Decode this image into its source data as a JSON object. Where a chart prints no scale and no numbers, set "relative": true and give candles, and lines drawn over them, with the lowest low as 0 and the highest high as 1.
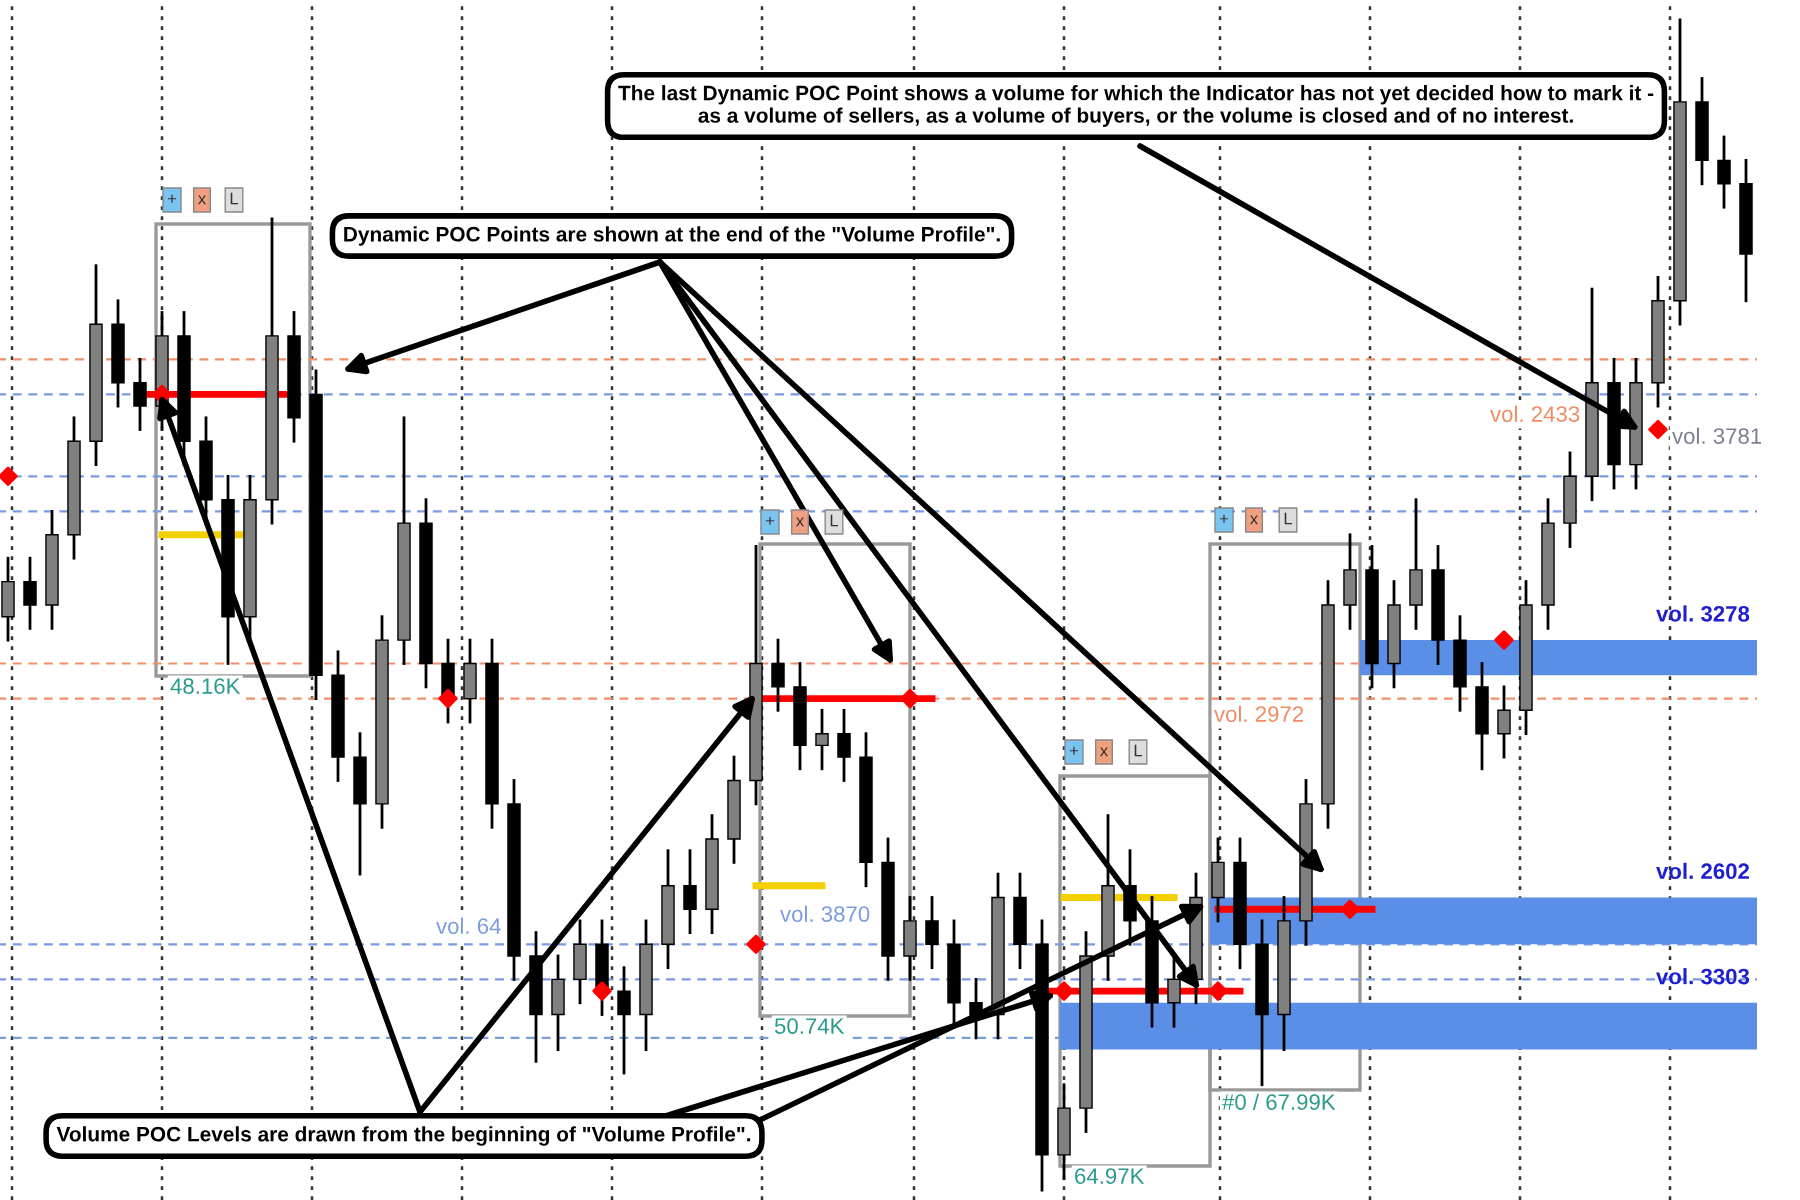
{
  "chart_data": {
    "type": "candlestick",
    "relative": true,
    "grid": "x",
    "categories": [
      null,
      null,
      null,
      null,
      null,
      null,
      null,
      null,
      null,
      null,
      null,
      null,
      null,
      null,
      null,
      null,
      null,
      null,
      null,
      null,
      null,
      null,
      null,
      null,
      null,
      null,
      null,
      null,
      null,
      null,
      null,
      null,
      null,
      null,
      null,
      null,
      null,
      null,
      null,
      null,
      null,
      null,
      null,
      null,
      null,
      null,
      null,
      null,
      null,
      null,
      null,
      null,
      null,
      null,
      null,
      null,
      null,
      null,
      null,
      null,
      null,
      null,
      null,
      null,
      null,
      null,
      null,
      null,
      null,
      null,
      null,
      null,
      null,
      null,
      null,
      null,
      null,
      null,
      null,
      null
    ],
    "ohlc": [
      [
        0.49,
        0.54,
        0.47,
        0.52
      ],
      [
        0.52,
        0.54,
        0.48,
        0.5
      ],
      [
        0.5,
        0.58,
        0.48,
        0.56
      ],
      [
        0.56,
        0.66,
        0.54,
        0.64
      ],
      [
        0.64,
        0.79,
        0.62,
        0.74
      ],
      [
        0.74,
        0.76,
        0.67,
        0.69
      ],
      [
        0.69,
        0.71,
        0.65,
        0.67
      ],
      [
        0.67,
        0.75,
        0.65,
        0.73
      ],
      [
        0.73,
        0.75,
        0.62,
        0.64
      ],
      [
        0.64,
        0.66,
        0.57,
        0.59
      ],
      [
        0.59,
        0.61,
        0.45,
        0.49
      ],
      [
        0.49,
        0.61,
        0.47,
        0.59
      ],
      [
        0.59,
        0.83,
        0.57,
        0.73
      ],
      [
        0.73,
        0.75,
        0.64,
        0.66
      ],
      [
        0.68,
        0.7,
        0.42,
        0.44
      ],
      [
        0.44,
        0.46,
        0.35,
        0.37
      ],
      [
        0.37,
        0.39,
        0.27,
        0.33
      ],
      [
        0.33,
        0.49,
        0.31,
        0.47
      ],
      [
        0.47,
        0.66,
        0.45,
        0.57
      ],
      [
        0.57,
        0.59,
        0.43,
        0.45
      ],
      [
        0.45,
        0.47,
        0.4,
        0.42
      ],
      [
        0.42,
        0.47,
        0.4,
        0.45
      ],
      [
        0.45,
        0.47,
        0.31,
        0.33
      ],
      [
        0.33,
        0.35,
        0.18,
        0.2
      ],
      [
        0.2,
        0.22,
        0.11,
        0.15
      ],
      [
        0.15,
        0.2,
        0.12,
        0.18
      ],
      [
        0.18,
        0.23,
        0.16,
        0.21
      ],
      [
        0.21,
        0.23,
        0.15,
        0.17
      ],
      [
        0.17,
        0.19,
        0.1,
        0.15
      ],
      [
        0.15,
        0.23,
        0.12,
        0.21
      ],
      [
        0.21,
        0.29,
        0.19,
        0.26
      ],
      [
        0.26,
        0.29,
        0.22,
        0.24
      ],
      [
        0.24,
        0.32,
        0.22,
        0.3
      ],
      [
        0.3,
        0.37,
        0.28,
        0.35
      ],
      [
        0.35,
        0.55,
        0.33,
        0.45
      ],
      [
        0.45,
        0.47,
        0.41,
        0.43
      ],
      [
        0.43,
        0.45,
        0.36,
        0.38
      ],
      [
        0.38,
        0.41,
        0.36,
        0.39
      ],
      [
        0.39,
        0.41,
        0.35,
        0.37
      ],
      [
        0.37,
        0.39,
        0.26,
        0.28
      ],
      [
        0.28,
        0.3,
        0.18,
        0.2
      ],
      [
        0.2,
        0.25,
        0.18,
        0.23
      ],
      [
        0.23,
        0.25,
        0.19,
        0.21
      ],
      [
        0.21,
        0.23,
        0.14,
        0.16
      ],
      [
        0.16,
        0.18,
        0.13,
        0.15
      ],
      [
        0.15,
        0.27,
        0.13,
        0.25
      ],
      [
        0.25,
        0.27,
        0.19,
        0.21
      ],
      [
        0.21,
        0.23,
        0,
        0.03
      ],
      [
        0.03,
        0.09,
        0.01,
        0.07
      ],
      [
        0.07,
        0.22,
        0.05,
        0.2
      ],
      [
        0.2,
        0.32,
        0.18,
        0.26
      ],
      [
        0.26,
        0.29,
        0.21,
        0.23
      ],
      [
        0.23,
        0.25,
        0.14,
        0.16
      ],
      [
        0.16,
        0.2,
        0.14,
        0.18
      ],
      [
        0.18,
        0.27,
        0.16,
        0.25
      ],
      [
        0.25,
        0.3,
        0.23,
        0.28
      ],
      [
        0.28,
        0.3,
        0.19,
        0.21
      ],
      [
        0.21,
        0.23,
        0.09,
        0.15
      ],
      [
        0.15,
        0.25,
        0.12,
        0.23
      ],
      [
        0.23,
        0.35,
        0.21,
        0.33
      ],
      [
        0.33,
        0.52,
        0.31,
        0.5
      ],
      [
        0.5,
        0.56,
        0.48,
        0.53
      ],
      [
        0.53,
        0.55,
        0.43,
        0.45
      ],
      [
        0.45,
        0.52,
        0.43,
        0.5
      ],
      [
        0.5,
        0.59,
        0.48,
        0.53
      ],
      [
        0.53,
        0.55,
        0.45,
        0.47
      ],
      [
        0.47,
        0.49,
        0.41,
        0.43
      ],
      [
        0.43,
        0.45,
        0.36,
        0.39
      ],
      [
        0.39,
        0.43,
        0.37,
        0.41
      ],
      [
        0.41,
        0.52,
        0.39,
        0.5
      ],
      [
        0.5,
        0.59,
        0.48,
        0.57
      ],
      [
        0.57,
        0.63,
        0.55,
        0.61
      ],
      [
        0.61,
        0.77,
        0.59,
        0.69
      ],
      [
        0.69,
        0.71,
        0.6,
        0.62
      ],
      [
        0.62,
        0.71,
        0.6,
        0.69
      ],
      [
        0.69,
        0.78,
        0.67,
        0.76
      ],
      [
        0.76,
        1.0,
        0.74,
        0.93
      ],
      [
        0.93,
        0.95,
        0.86,
        0.88
      ],
      [
        0.88,
        0.9,
        0.84,
        0.86
      ],
      [
        0.86,
        0.88,
        0.76,
        0.8
      ]
    ],
    "colors": [
      "#808080",
      "#000000",
      "#808080",
      "#808080",
      "#808080",
      "#000000",
      "#000000",
      "#808080",
      "#000000",
      "#000000",
      "#000000",
      "#808080",
      "#808080",
      "#000000",
      "#000000",
      "#000000",
      "#000000",
      "#808080",
      "#808080",
      "#000000",
      "#000000",
      "#808080",
      "#000000",
      "#000000",
      "#000000",
      "#808080",
      "#808080",
      "#000000",
      "#000000",
      "#808080",
      "#808080",
      "#000000",
      "#808080",
      "#808080",
      "#808080",
      "#000000",
      "#000000",
      "#808080",
      "#000000",
      "#000000",
      "#000000",
      "#808080",
      "#000000",
      "#000000",
      "#000000",
      "#808080",
      "#000000",
      "#000000",
      "#808080",
      "#808080",
      "#808080",
      "#000000",
      "#000000",
      "#808080",
      "#808080",
      "#808080",
      "#000000",
      "#000000",
      "#808080",
      "#808080",
      "#808080",
      "#808080",
      "#000000",
      "#808080",
      "#808080",
      "#000000",
      "#000000",
      "#000000",
      "#808080",
      "#808080",
      "#808080",
      "#808080",
      "#808080",
      "#000000",
      "#808080",
      "#808080",
      "#808080",
      "#000000",
      "#000000",
      "#000000"
    ],
    "series": [
      {
        "type": "line",
        "color": "#ff0000",
        "values": [
          null,
          null,
          null,
          null,
          null,
          null,
          0.68,
          0.68,
          0.68,
          0.68,
          0.68,
          0.68,
          0.68,
          0.68,
          null,
          null,
          null,
          null,
          null,
          null,
          null,
          null,
          null,
          null,
          null,
          null,
          null,
          null,
          null,
          null,
          null,
          null,
          null,
          null,
          null,
          null,
          null,
          null,
          null,
          null,
          null,
          null,
          null,
          null,
          null,
          null,
          null,
          null,
          null,
          null,
          null,
          null,
          null,
          null,
          null,
          null,
          null,
          null,
          null,
          null,
          null,
          null,
          null,
          null,
          null,
          null,
          null,
          null,
          null,
          null,
          null,
          null,
          null,
          null,
          null,
          null,
          null,
          null,
          null,
          null
        ]
      },
      {
        "type": "line",
        "color": "#ff0000",
        "values": [
          null,
          null,
          null,
          null,
          null,
          null,
          null,
          null,
          null,
          null,
          null,
          null,
          null,
          null,
          null,
          null,
          null,
          null,
          null,
          null,
          null,
          null,
          null,
          null,
          null,
          null,
          null,
          null,
          null,
          null,
          null,
          null,
          null,
          null,
          0.42,
          0.42,
          0.42,
          0.42,
          0.42,
          0.42,
          0.42,
          0.42,
          0.42,
          null,
          null,
          null,
          null,
          null,
          null,
          null,
          null,
          null,
          null,
          null,
          null,
          null,
          null,
          null,
          null,
          null,
          null,
          null,
          null,
          null,
          null,
          null,
          null,
          null,
          null,
          null,
          null,
          null,
          null,
          null,
          null,
          null,
          null,
          null,
          null,
          null
        ]
      },
      {
        "type": "line",
        "color": "#ff0000",
        "values": [
          null,
          null,
          null,
          null,
          null,
          null,
          null,
          null,
          null,
          null,
          null,
          null,
          null,
          null,
          null,
          null,
          null,
          null,
          null,
          null,
          null,
          null,
          null,
          null,
          null,
          null,
          null,
          null,
          null,
          null,
          null,
          null,
          null,
          null,
          null,
          null,
          null,
          null,
          null,
          null,
          null,
          null,
          null,
          null,
          null,
          null,
          null,
          0.17,
          0.17,
          0.17,
          0.17,
          0.17,
          0.17,
          0.17,
          0.17,
          0.17,
          0.17,
          null,
          null,
          null,
          null,
          null,
          null,
          null,
          null,
          null,
          null,
          null,
          null,
          null,
          null,
          null,
          null,
          null,
          null,
          null,
          null,
          null,
          null,
          null
        ]
      },
      {
        "type": "line",
        "color": "#ff0000",
        "values": [
          null,
          null,
          null,
          null,
          null,
          null,
          null,
          null,
          null,
          null,
          null,
          null,
          null,
          null,
          null,
          null,
          null,
          null,
          null,
          null,
          null,
          null,
          null,
          null,
          null,
          null,
          null,
          null,
          null,
          null,
          null,
          null,
          null,
          null,
          null,
          null,
          null,
          null,
          null,
          null,
          null,
          null,
          null,
          null,
          null,
          null,
          null,
          null,
          null,
          null,
          null,
          null,
          null,
          null,
          null,
          0.24,
          0.24,
          0.24,
          0.24,
          0.24,
          0.24,
          0.24,
          0.24,
          null,
          null,
          null,
          null,
          null,
          null,
          null,
          null,
          null,
          null,
          null,
          null,
          null,
          null,
          null,
          null,
          null
        ]
      },
      {
        "type": "line",
        "color": "#f5d000",
        "values": [
          null,
          null,
          null,
          null,
          null,
          null,
          null,
          0.56,
          0.56,
          0.56,
          0.56,
          0.56,
          null,
          null,
          null,
          null,
          null,
          null,
          null,
          null,
          null,
          null,
          null,
          null,
          null,
          null,
          null,
          null,
          null,
          null,
          null,
          null,
          null,
          null,
          null,
          null,
          null,
          null,
          null,
          null,
          null,
          null,
          null,
          null,
          null,
          null,
          null,
          null,
          null,
          null,
          null,
          null,
          null,
          null,
          null,
          null,
          null,
          null,
          null,
          null,
          null,
          null,
          null,
          null,
          null,
          null,
          null,
          null,
          null,
          null,
          null,
          null,
          null,
          null,
          null,
          null,
          null,
          null,
          null,
          null
        ]
      },
      {
        "type": "line",
        "color": "#f5d000",
        "values": [
          null,
          null,
          null,
          null,
          null,
          null,
          null,
          null,
          null,
          null,
          null,
          null,
          null,
          null,
          null,
          null,
          null,
          null,
          null,
          null,
          null,
          null,
          null,
          null,
          null,
          null,
          null,
          null,
          null,
          null,
          null,
          null,
          null,
          null,
          0.26,
          0.26,
          0.26,
          0.26,
          null,
          null,
          null,
          null,
          null,
          null,
          null,
          null,
          null,
          null,
          null,
          null,
          null,
          null,
          null,
          null,
          null,
          null,
          null,
          null,
          null,
          null,
          null,
          null,
          null,
          null,
          null,
          null,
          null,
          null,
          null,
          null,
          null,
          null,
          null,
          null,
          null,
          null,
          null,
          null,
          null,
          null
        ]
      },
      {
        "type": "line",
        "color": "#f5d000",
        "values": [
          null,
          null,
          null,
          null,
          null,
          null,
          null,
          null,
          null,
          null,
          null,
          null,
          null,
          null,
          null,
          null,
          null,
          null,
          null,
          null,
          null,
          null,
          null,
          null,
          null,
          null,
          null,
          null,
          null,
          null,
          null,
          null,
          null,
          null,
          null,
          null,
          null,
          null,
          null,
          null,
          null,
          null,
          null,
          null,
          null,
          null,
          null,
          null,
          0.25,
          0.25,
          0.25,
          0.25,
          0.25,
          0.25,
          null,
          null,
          null,
          null,
          null,
          null,
          null,
          null,
          null,
          null,
          null,
          null,
          null,
          null,
          null,
          null,
          null,
          null,
          null,
          null,
          null,
          null,
          null,
          null,
          null,
          null
        ]
      },
      {
        "type": "scatter",
        "color": "#ff0000",
        "marker": "diamond",
        "values": [
          0.61,
          null,
          null,
          null,
          null,
          null,
          null,
          0.68,
          null,
          null,
          null,
          null,
          null,
          null,
          null,
          null,
          null,
          null,
          null,
          null,
          0.42,
          null,
          null,
          null,
          null,
          null,
          null,
          0.17,
          null,
          null,
          null,
          null,
          null,
          null,
          0.21,
          null,
          null,
          null,
          null,
          null,
          null,
          0.42,
          null,
          null,
          null,
          null,
          null,
          null,
          0.17,
          null,
          null,
          null,
          null,
          null,
          null,
          0.17,
          null,
          null,
          null,
          null,
          null,
          0.24,
          null,
          null,
          null,
          null,
          null,
          null,
          0.47,
          null,
          null,
          null,
          null,
          null,
          null,
          0.65,
          null,
          null,
          null,
          null
        ]
      }
    ],
    "ref_lines": [
      {
        "axis": "y",
        "value": 0.68,
        "color": "#7a9be0",
        "line_style": "dashed"
      },
      {
        "axis": "y",
        "value": 0.61,
        "color": "#7a9be0",
        "line_style": "dashed"
      },
      {
        "axis": "y",
        "value": 0.58,
        "color": "#7a9be0",
        "line_style": "dashed"
      },
      {
        "axis": "y",
        "value": 0.21,
        "color": "#7a9be0",
        "line_style": "dashed"
      },
      {
        "axis": "y",
        "value": 0.18,
        "color": "#7a9be0",
        "line_style": "dashed"
      },
      {
        "axis": "y",
        "value": 0.13,
        "color": "#7a9be0",
        "line_style": "dashed"
      },
      {
        "axis": "y",
        "value": 0.71,
        "color": "#f0906a",
        "line_style": "dashed"
      },
      {
        "axis": "y",
        "value": 0.45,
        "color": "#f0906a",
        "line_style": "dashed"
      },
      {
        "axis": "y",
        "value": 0.42,
        "color": "#f0906a",
        "line_style": "dashed"
      }
    ],
    "bands": [
      {
        "axis": "y",
        "from": 0.44,
        "to": 0.47,
        "label": "vol. 3278",
        "color": "#5b8ee6"
      },
      {
        "axis": "y",
        "from": 0.21,
        "to": 0.25,
        "label": "vol. 2602",
        "color": "#5b8ee6"
      },
      {
        "axis": "y",
        "from": 0.12,
        "to": 0.16,
        "label": "vol. 3303",
        "color": "#5b8ee6"
      }
    ],
    "annotations": [
      "Dynamic POC Points are shown at the end of the \"Volume Profile\".",
      "The last Dynamic POC Point shows a volume for which the Indicator has not yet decided how to mark it -\nas a volume of sellers, as a volume of buyers, or the volume is closed and of no interest.",
      "Volume POC Levels are drawn from the beginning of \"Volume Profile\".",
      "vol. 2972",
      "vol. 2433",
      "vol. 3781",
      "vol. 3870",
      "vol. 64",
      "48.16K",
      "50.74K",
      "64.97K",
      "#0 / 67.99K",
      "+",
      "x",
      "L",
      "+",
      "x",
      "L",
      "+",
      "x",
      "L",
      "+",
      "x",
      "L"
    ]
  }
}
